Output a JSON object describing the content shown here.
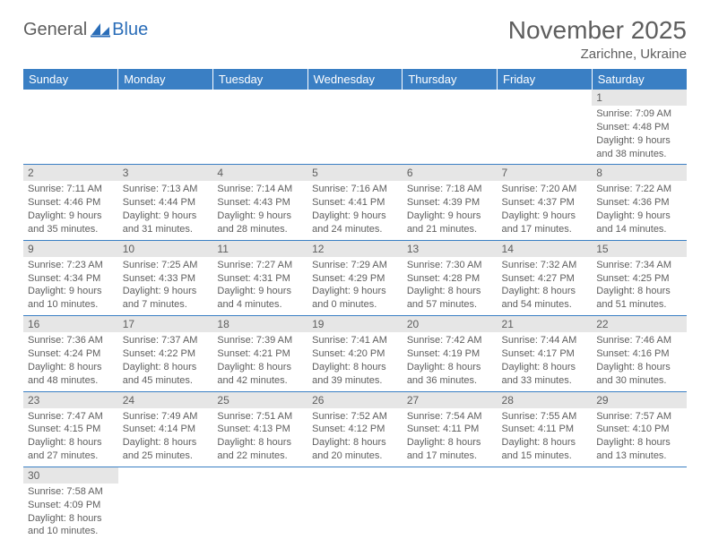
{
  "logo": {
    "part1": "General",
    "part2": "Blue"
  },
  "title": "November 2025",
  "location": "Zarichne, Ukraine",
  "colors": {
    "header_bg": "#3a7fc4",
    "header_text": "#ffffff",
    "daynum_bg": "#e6e6e6",
    "text": "#5e5e5e",
    "rule": "#3a7fc4",
    "logo_gray": "#5e5e5e",
    "logo_blue": "#2a6db8"
  },
  "weekdays": [
    "Sunday",
    "Monday",
    "Tuesday",
    "Wednesday",
    "Thursday",
    "Friday",
    "Saturday"
  ],
  "weeks": [
    [
      null,
      null,
      null,
      null,
      null,
      null,
      {
        "n": "1",
        "sr": "Sunrise: 7:09 AM",
        "ss": "Sunset: 4:48 PM",
        "d1": "Daylight: 9 hours",
        "d2": "and 38 minutes."
      }
    ],
    [
      {
        "n": "2",
        "sr": "Sunrise: 7:11 AM",
        "ss": "Sunset: 4:46 PM",
        "d1": "Daylight: 9 hours",
        "d2": "and 35 minutes."
      },
      {
        "n": "3",
        "sr": "Sunrise: 7:13 AM",
        "ss": "Sunset: 4:44 PM",
        "d1": "Daylight: 9 hours",
        "d2": "and 31 minutes."
      },
      {
        "n": "4",
        "sr": "Sunrise: 7:14 AM",
        "ss": "Sunset: 4:43 PM",
        "d1": "Daylight: 9 hours",
        "d2": "and 28 minutes."
      },
      {
        "n": "5",
        "sr": "Sunrise: 7:16 AM",
        "ss": "Sunset: 4:41 PM",
        "d1": "Daylight: 9 hours",
        "d2": "and 24 minutes."
      },
      {
        "n": "6",
        "sr": "Sunrise: 7:18 AM",
        "ss": "Sunset: 4:39 PM",
        "d1": "Daylight: 9 hours",
        "d2": "and 21 minutes."
      },
      {
        "n": "7",
        "sr": "Sunrise: 7:20 AM",
        "ss": "Sunset: 4:37 PM",
        "d1": "Daylight: 9 hours",
        "d2": "and 17 minutes."
      },
      {
        "n": "8",
        "sr": "Sunrise: 7:22 AM",
        "ss": "Sunset: 4:36 PM",
        "d1": "Daylight: 9 hours",
        "d2": "and 14 minutes."
      }
    ],
    [
      {
        "n": "9",
        "sr": "Sunrise: 7:23 AM",
        "ss": "Sunset: 4:34 PM",
        "d1": "Daylight: 9 hours",
        "d2": "and 10 minutes."
      },
      {
        "n": "10",
        "sr": "Sunrise: 7:25 AM",
        "ss": "Sunset: 4:33 PM",
        "d1": "Daylight: 9 hours",
        "d2": "and 7 minutes."
      },
      {
        "n": "11",
        "sr": "Sunrise: 7:27 AM",
        "ss": "Sunset: 4:31 PM",
        "d1": "Daylight: 9 hours",
        "d2": "and 4 minutes."
      },
      {
        "n": "12",
        "sr": "Sunrise: 7:29 AM",
        "ss": "Sunset: 4:29 PM",
        "d1": "Daylight: 9 hours",
        "d2": "and 0 minutes."
      },
      {
        "n": "13",
        "sr": "Sunrise: 7:30 AM",
        "ss": "Sunset: 4:28 PM",
        "d1": "Daylight: 8 hours",
        "d2": "and 57 minutes."
      },
      {
        "n": "14",
        "sr": "Sunrise: 7:32 AM",
        "ss": "Sunset: 4:27 PM",
        "d1": "Daylight: 8 hours",
        "d2": "and 54 minutes."
      },
      {
        "n": "15",
        "sr": "Sunrise: 7:34 AM",
        "ss": "Sunset: 4:25 PM",
        "d1": "Daylight: 8 hours",
        "d2": "and 51 minutes."
      }
    ],
    [
      {
        "n": "16",
        "sr": "Sunrise: 7:36 AM",
        "ss": "Sunset: 4:24 PM",
        "d1": "Daylight: 8 hours",
        "d2": "and 48 minutes."
      },
      {
        "n": "17",
        "sr": "Sunrise: 7:37 AM",
        "ss": "Sunset: 4:22 PM",
        "d1": "Daylight: 8 hours",
        "d2": "and 45 minutes."
      },
      {
        "n": "18",
        "sr": "Sunrise: 7:39 AM",
        "ss": "Sunset: 4:21 PM",
        "d1": "Daylight: 8 hours",
        "d2": "and 42 minutes."
      },
      {
        "n": "19",
        "sr": "Sunrise: 7:41 AM",
        "ss": "Sunset: 4:20 PM",
        "d1": "Daylight: 8 hours",
        "d2": "and 39 minutes."
      },
      {
        "n": "20",
        "sr": "Sunrise: 7:42 AM",
        "ss": "Sunset: 4:19 PM",
        "d1": "Daylight: 8 hours",
        "d2": "and 36 minutes."
      },
      {
        "n": "21",
        "sr": "Sunrise: 7:44 AM",
        "ss": "Sunset: 4:17 PM",
        "d1": "Daylight: 8 hours",
        "d2": "and 33 minutes."
      },
      {
        "n": "22",
        "sr": "Sunrise: 7:46 AM",
        "ss": "Sunset: 4:16 PM",
        "d1": "Daylight: 8 hours",
        "d2": "and 30 minutes."
      }
    ],
    [
      {
        "n": "23",
        "sr": "Sunrise: 7:47 AM",
        "ss": "Sunset: 4:15 PM",
        "d1": "Daylight: 8 hours",
        "d2": "and 27 minutes."
      },
      {
        "n": "24",
        "sr": "Sunrise: 7:49 AM",
        "ss": "Sunset: 4:14 PM",
        "d1": "Daylight: 8 hours",
        "d2": "and 25 minutes."
      },
      {
        "n": "25",
        "sr": "Sunrise: 7:51 AM",
        "ss": "Sunset: 4:13 PM",
        "d1": "Daylight: 8 hours",
        "d2": "and 22 minutes."
      },
      {
        "n": "26",
        "sr": "Sunrise: 7:52 AM",
        "ss": "Sunset: 4:12 PM",
        "d1": "Daylight: 8 hours",
        "d2": "and 20 minutes."
      },
      {
        "n": "27",
        "sr": "Sunrise: 7:54 AM",
        "ss": "Sunset: 4:11 PM",
        "d1": "Daylight: 8 hours",
        "d2": "and 17 minutes."
      },
      {
        "n": "28",
        "sr": "Sunrise: 7:55 AM",
        "ss": "Sunset: 4:11 PM",
        "d1": "Daylight: 8 hours",
        "d2": "and 15 minutes."
      },
      {
        "n": "29",
        "sr": "Sunrise: 7:57 AM",
        "ss": "Sunset: 4:10 PM",
        "d1": "Daylight: 8 hours",
        "d2": "and 13 minutes."
      }
    ],
    [
      {
        "n": "30",
        "sr": "Sunrise: 7:58 AM",
        "ss": "Sunset: 4:09 PM",
        "d1": "Daylight: 8 hours",
        "d2": "and 10 minutes."
      },
      null,
      null,
      null,
      null,
      null,
      null
    ]
  ]
}
